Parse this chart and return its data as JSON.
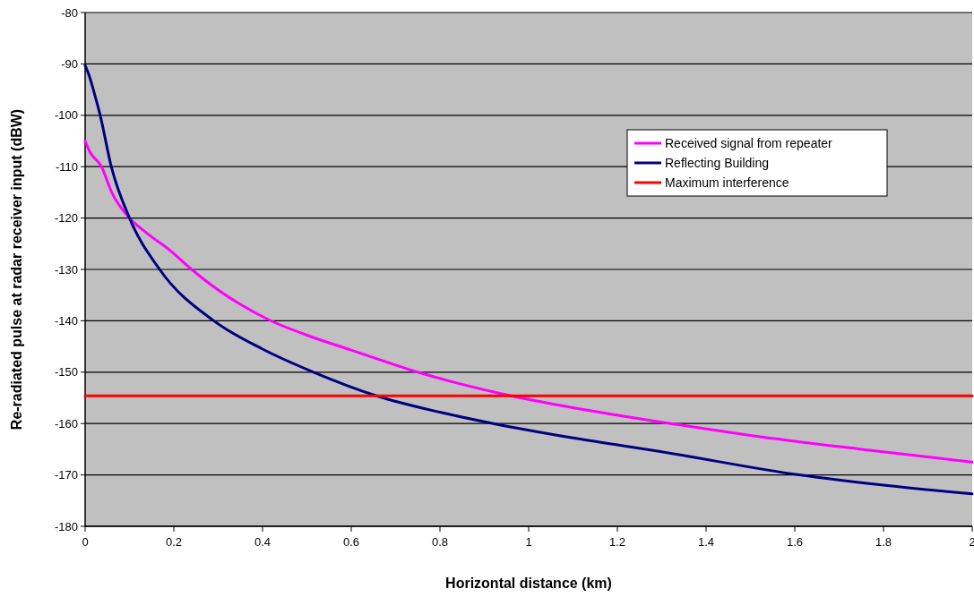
{
  "chart_data": {
    "type": "line",
    "xlabel": "Horizontal distance (km)",
    "ylabel": "Re-radiated pulse at radar receiver input (dBW)",
    "xlim": [
      0,
      2
    ],
    "ylim": [
      -180,
      -80
    ],
    "xticks": [
      0,
      0.2,
      0.4,
      0.6,
      0.8,
      1,
      1.2,
      1.4,
      1.6,
      1.8,
      2
    ],
    "yticks": [
      -180,
      -170,
      -160,
      -150,
      -140,
      -130,
      -120,
      -110,
      -100,
      -90,
      -80
    ],
    "grid": "y",
    "legend": "top right",
    "marker": "none",
    "line_style": "solid",
    "series": [
      {
        "name": "Received signal from repeater",
        "color": "#ff00ff",
        "x": [
          0,
          0.01,
          0.037,
          0.06,
          0.1,
          0.14,
          0.19,
          0.24,
          0.3,
          0.35,
          0.414,
          0.5,
          0.6,
          0.75,
          0.96,
          1.1,
          1.32,
          1.5,
          1.75,
          2
        ],
        "values": [
          -105,
          -107,
          -110,
          -115,
          -120,
          -123,
          -126.2,
          -130,
          -134,
          -136.8,
          -139.8,
          -142.8,
          -145.7,
          -150,
          -154.6,
          -156.9,
          -160,
          -162.3,
          -165,
          -167.5
        ]
      },
      {
        "name": "Reflecting Building",
        "color": "#000080",
        "x": [
          0,
          0.01,
          0.02,
          0.034,
          0.059,
          0.1,
          0.168,
          0.29,
          0.4,
          0.515,
          0.657,
          0.8,
          0.92,
          1.1,
          1.3,
          1.61,
          1.8,
          2
        ],
        "values": [
          -90.3,
          -92.5,
          -95.5,
          -100,
          -110,
          -120,
          -130,
          -140,
          -145.5,
          -150,
          -154.6,
          -157.8,
          -160,
          -162.8,
          -165.5,
          -170,
          -172,
          -173.7
        ]
      },
      {
        "name": "Maximum interference",
        "color": "#ff0000",
        "x": [
          0,
          2
        ],
        "values": [
          -154.6,
          -154.6
        ]
      }
    ]
  }
}
